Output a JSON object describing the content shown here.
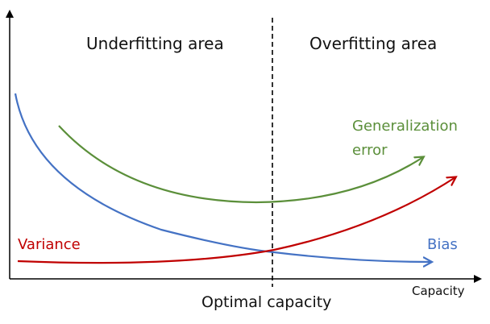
{
  "regions": {
    "left_label": "Underfitting area",
    "right_label": "Overfitting area"
  },
  "axes": {
    "x_label": "Capacity",
    "optimal_label": "Optimal capacity"
  },
  "curves": {
    "generalization_line1": "Generalization",
    "generalization_line2": "error",
    "variance": "Variance",
    "bias": "Bias"
  },
  "colors": {
    "axis": "#000000",
    "generalization": "#5b8f3a",
    "variance": "#c00000",
    "bias": "#4472c4",
    "divider": "#000000"
  }
}
